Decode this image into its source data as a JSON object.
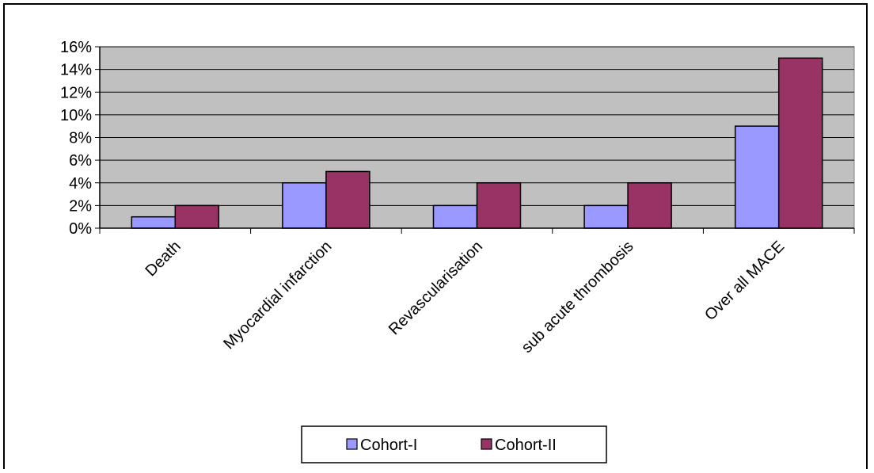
{
  "chart_data": {
    "type": "bar",
    "categories": [
      "Death",
      "Myocardial infarction",
      "Revascularisation",
      "sub acute thrombosis",
      "Over all MACE"
    ],
    "series": [
      {
        "name": "Cohort-I",
        "values": [
          1,
          4,
          2,
          2,
          9
        ],
        "color": "#9999ff"
      },
      {
        "name": "Cohort-II",
        "values": [
          2,
          5,
          4,
          4,
          15
        ],
        "color": "#993366"
      }
    ],
    "ylim": [
      0,
      16
    ],
    "yticks": [
      0,
      2,
      4,
      6,
      8,
      10,
      12,
      14,
      16
    ],
    "ytick_labels": [
      "0%",
      "2%",
      "4%",
      "6%",
      "8%",
      "10%",
      "12%",
      "14%",
      "16%"
    ],
    "grid": true,
    "plot_background": "#c0c0c0",
    "legend_position": "bottom-center",
    "title": "",
    "xlabel": "",
    "ylabel": ""
  }
}
